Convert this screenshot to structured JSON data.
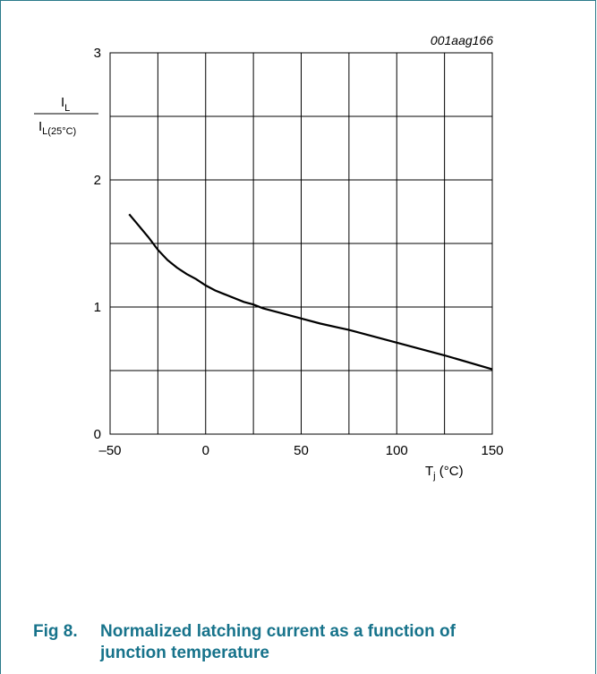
{
  "figure_code": "001aag166",
  "ylabel_numerator": "I",
  "ylabel_numerator_sub": "L",
  "ylabel_denominator": "I",
  "ylabel_denominator_sub": "L(25°C)",
  "xlabel_main": "T",
  "xlabel_sub": "j",
  "xlabel_unit": " (°C)",
  "caption": {
    "number": "Fig 8.",
    "line1": "Normalized latching current as a function of",
    "line2": "junction temperature"
  },
  "colors": {
    "caption": "#17738b",
    "frame": "#2b7a8a",
    "grid": "#000000",
    "curve": "#000000"
  },
  "chart_data": {
    "type": "line",
    "title": "",
    "xlabel": "Tj (°C)",
    "ylabel": "IL / IL(25°C)",
    "xlim": [
      -50,
      150
    ],
    "ylim": [
      0,
      3
    ],
    "x_ticks": [
      -50,
      0,
      50,
      100,
      150
    ],
    "x_tick_labels": [
      "–50",
      "0",
      "50",
      "100",
      "150"
    ],
    "y_ticks": [
      0,
      1,
      2,
      3
    ],
    "y_tick_labels": [
      "0",
      "1",
      "2",
      "3"
    ],
    "grid": true,
    "series": [
      {
        "x": [
          -40,
          -35,
          -30,
          -25,
          -20,
          -15,
          -10,
          -5,
          0,
          5,
          10,
          20,
          25,
          30,
          40,
          50,
          60,
          75,
          100,
          125,
          150
        ],
        "y": [
          1.73,
          1.64,
          1.55,
          1.45,
          1.37,
          1.31,
          1.26,
          1.22,
          1.17,
          1.13,
          1.1,
          1.04,
          1.02,
          0.99,
          0.95,
          0.91,
          0.87,
          0.82,
          0.72,
          0.62,
          0.51
        ]
      }
    ]
  }
}
